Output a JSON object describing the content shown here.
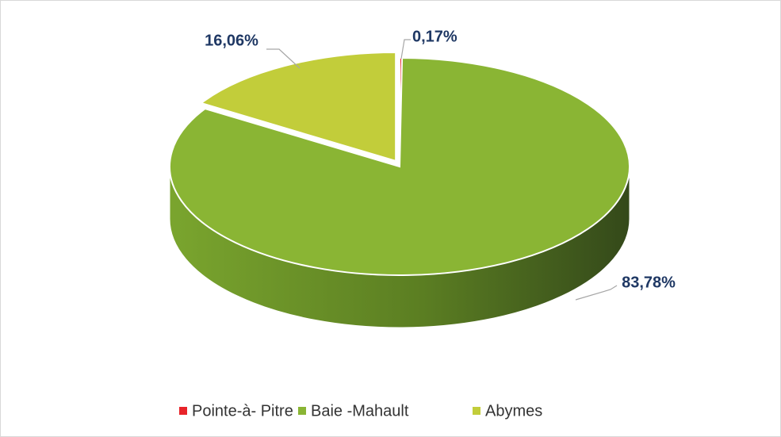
{
  "chart_data": {
    "type": "pie",
    "categories": [
      "Pointe-à- Pitre",
      "Baie -Mahault",
      "Abymes"
    ],
    "values": [
      0.17,
      83.78,
      16.06
    ],
    "value_labels": [
      "0,17%",
      "83,78%",
      "16,06%"
    ],
    "colors": [
      "#e8242a",
      "#8ab534",
      "#c2cd3a"
    ],
    "legend": "bottom"
  }
}
